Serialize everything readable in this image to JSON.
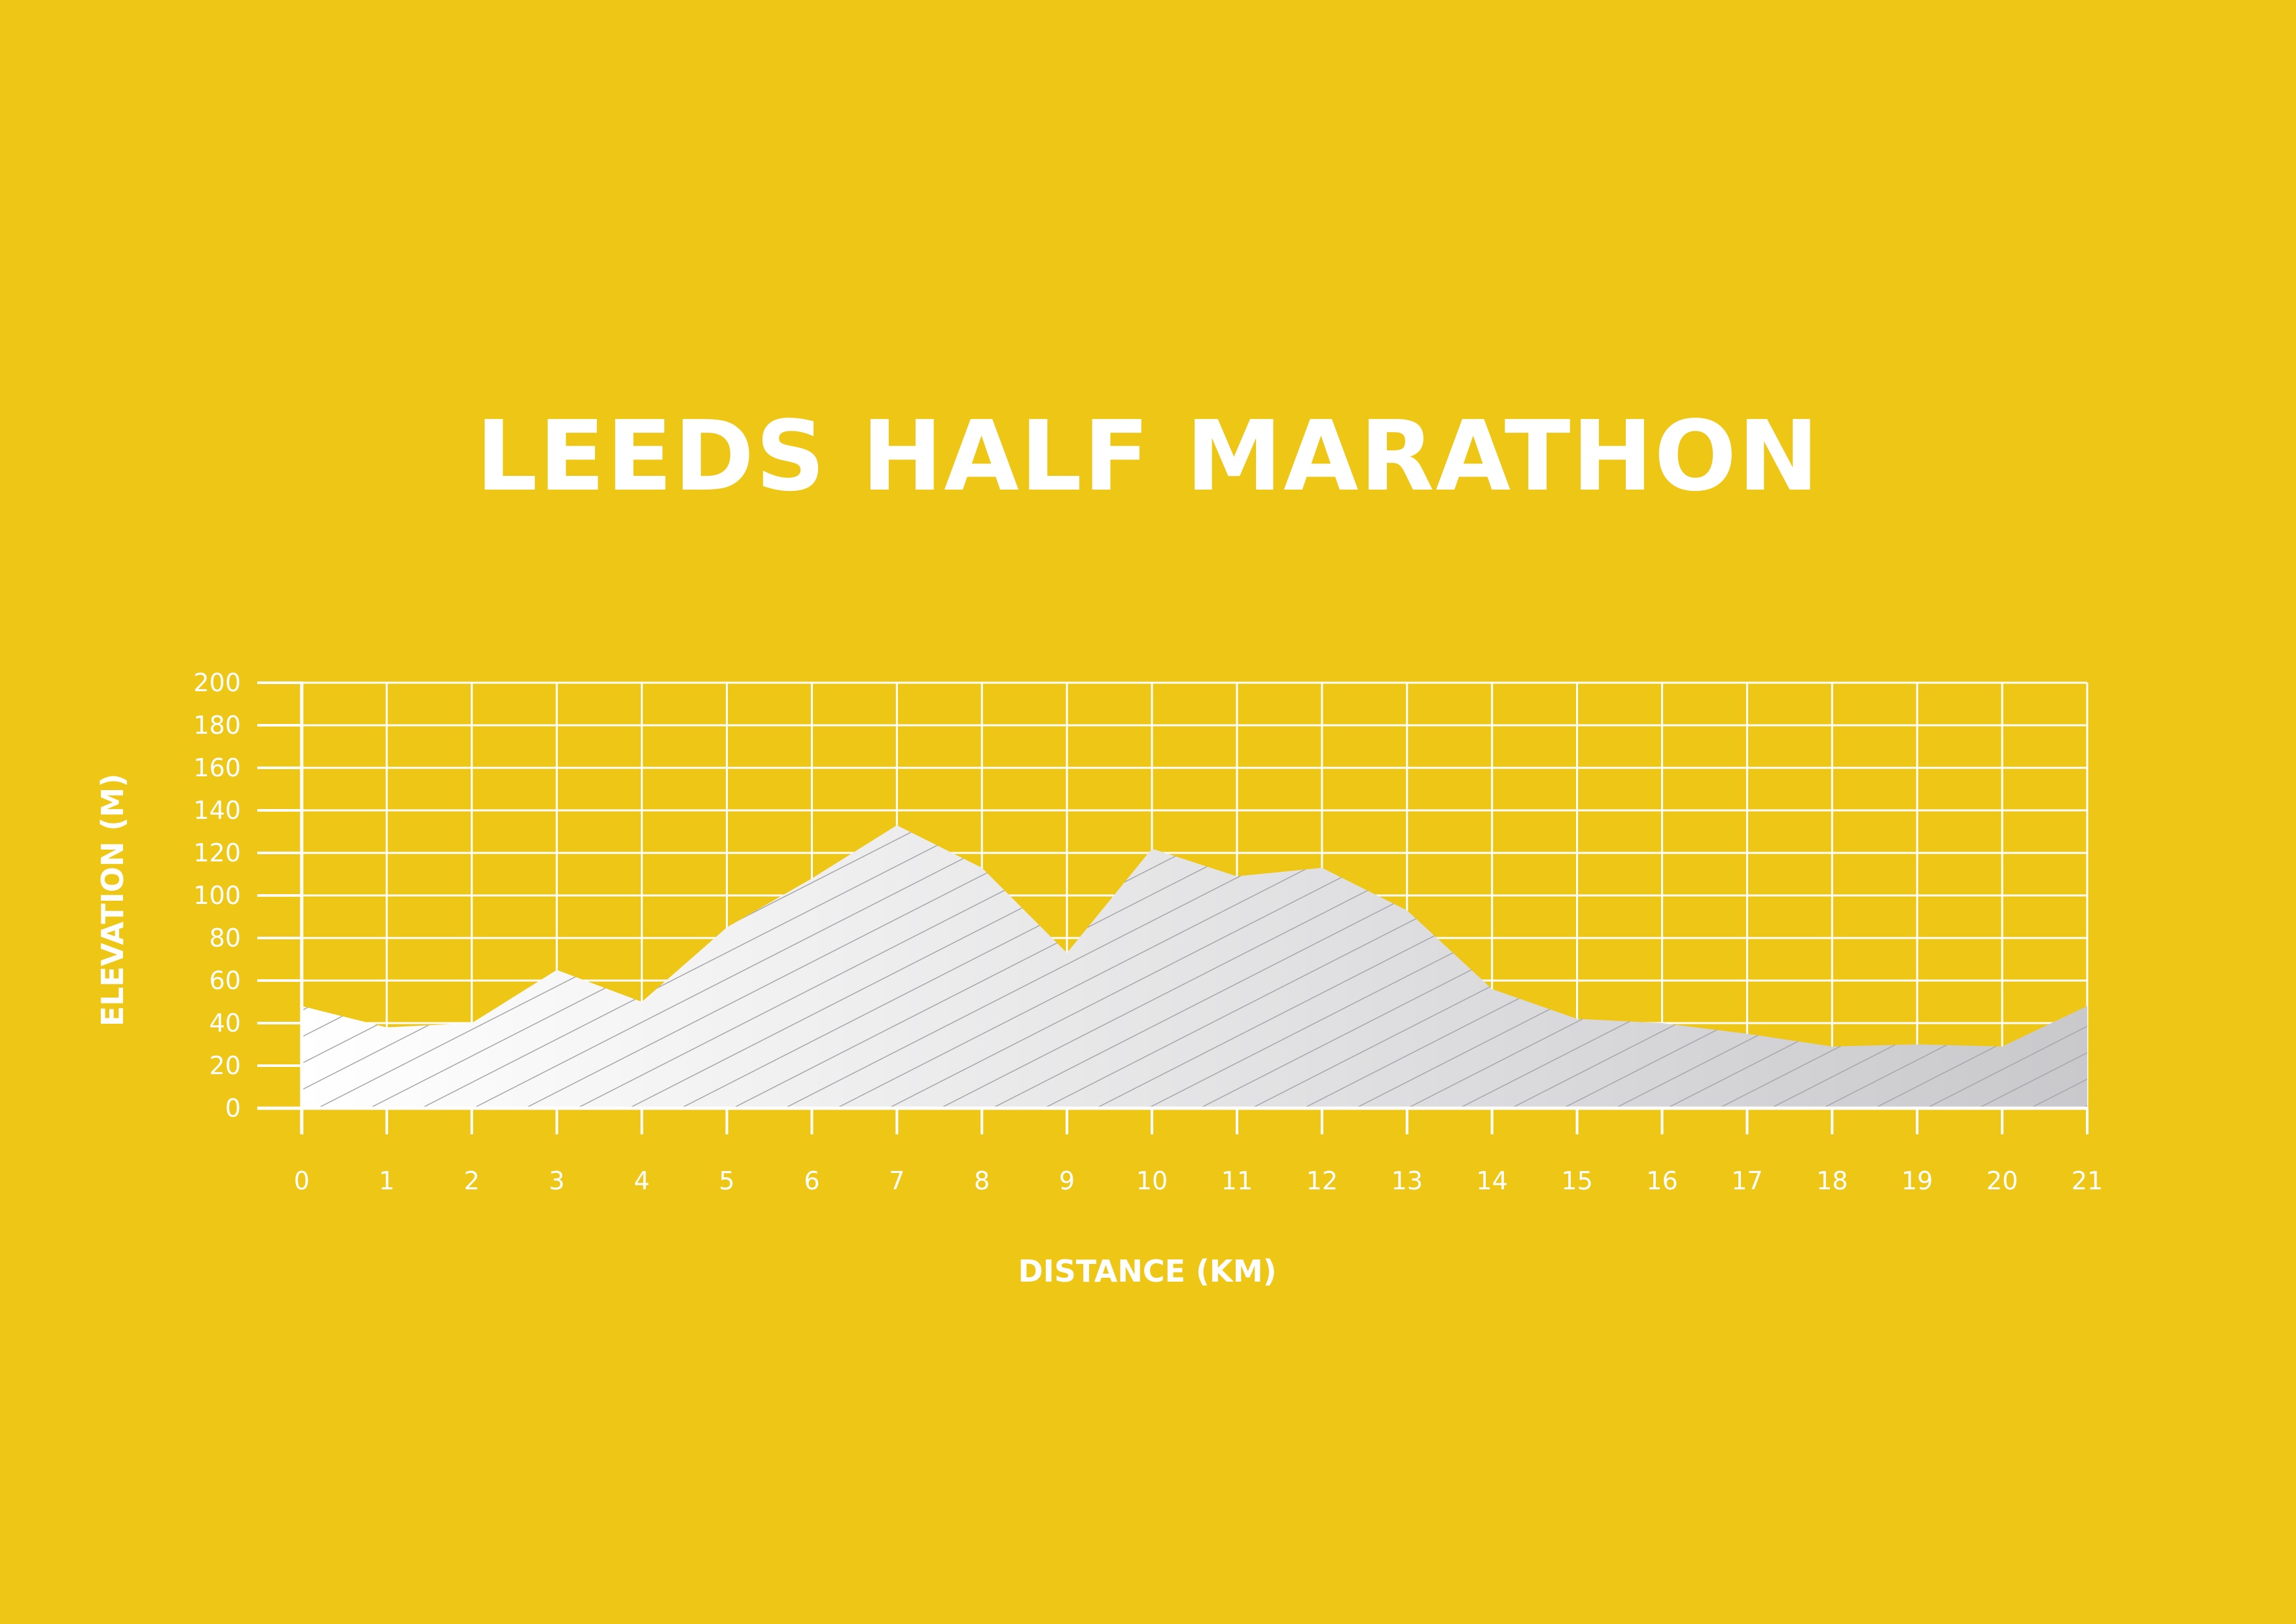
{
  "title": "LEEDS HALF MARATHON",
  "colors": {
    "background": "#EEC616",
    "foreground": "#FFFFFF",
    "fill_light": "#FFFFFF",
    "fill_dark": "#C9C9CC",
    "hatch": "#A6A6AB"
  },
  "chart_data": {
    "type": "area",
    "title": "LEEDS HALF MARATHON",
    "xlabel": "DISTANCE (KM)",
    "ylabel": "ELEVATION (M)",
    "xlim": [
      0,
      21
    ],
    "ylim": [
      0,
      200
    ],
    "xticks": [
      0,
      1,
      2,
      3,
      4,
      5,
      6,
      7,
      8,
      9,
      10,
      11,
      12,
      13,
      14,
      15,
      16,
      17,
      18,
      19,
      20,
      21
    ],
    "yticks": [
      0,
      20,
      40,
      60,
      80,
      100,
      120,
      140,
      160,
      180,
      200
    ],
    "grid": true,
    "x": [
      0,
      1,
      2,
      3,
      4,
      5,
      6,
      7,
      8,
      9,
      10,
      11,
      12,
      13,
      14,
      15,
      16,
      17,
      18,
      19,
      20,
      21
    ],
    "values": [
      48,
      38,
      40,
      65,
      50,
      85,
      108,
      133,
      113,
      73,
      122,
      109,
      113,
      93,
      56,
      42,
      40,
      35,
      29,
      30,
      29,
      48
    ]
  }
}
